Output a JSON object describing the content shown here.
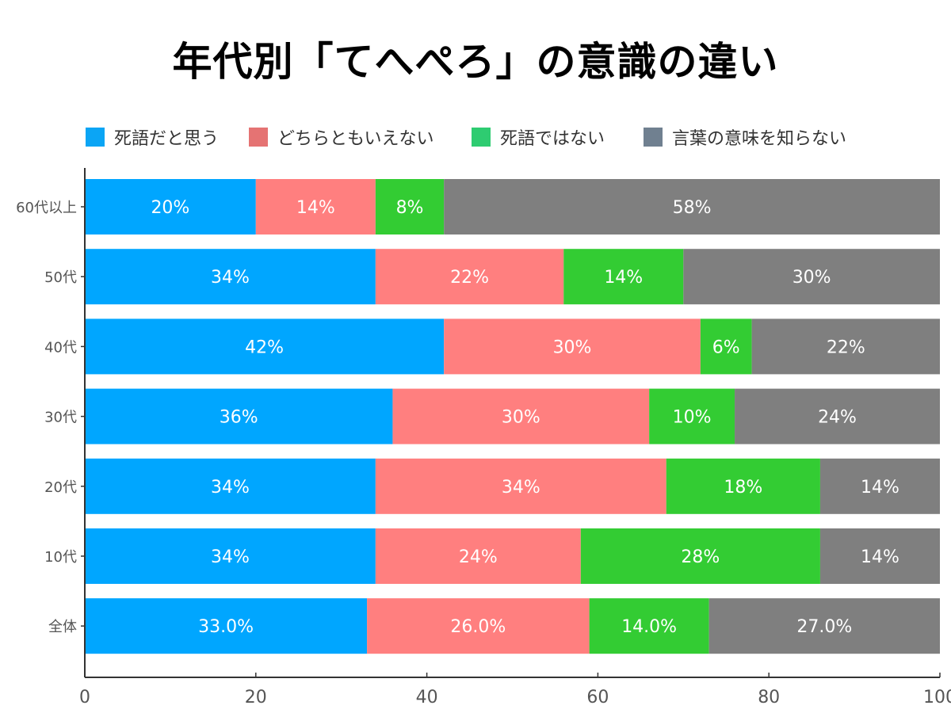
{
  "chart_data": {
    "type": "bar",
    "orientation": "horizontal",
    "stacked": true,
    "title": "年代別「てへぺろ」の意識の違い",
    "xlabel": "",
    "ylabel": "",
    "xlim": [
      0,
      100
    ],
    "xticks": [
      0,
      20,
      40,
      60,
      80,
      100
    ],
    "grid": false,
    "legend_position": "top",
    "categories": [
      "60代以上",
      "50代",
      "40代",
      "30代",
      "20代",
      "10代",
      "全体"
    ],
    "series": [
      {
        "name": "死語だと思う",
        "color": "#00A6FF",
        "legend_color": "#0BA5F5",
        "values": [
          20,
          34,
          42,
          36,
          34,
          34,
          33.0
        ],
        "labels": [
          "20%",
          "34%",
          "42%",
          "36%",
          "34%",
          "34%",
          "33.0%"
        ]
      },
      {
        "name": "どちらともいえない",
        "color": "#FF7F7F",
        "legend_color": "#E57373",
        "values": [
          14,
          22,
          30,
          30,
          34,
          24,
          26.0
        ],
        "labels": [
          "14%",
          "22%",
          "30%",
          "30%",
          "34%",
          "24%",
          "26.0%"
        ]
      },
      {
        "name": "死語ではない",
        "color": "#33CC33",
        "legend_color": "#2ECC71",
        "values": [
          8,
          14,
          6,
          10,
          18,
          28,
          14.0
        ],
        "labels": [
          "8%",
          "14%",
          "6%",
          "10%",
          "18%",
          "28%",
          "14.0%"
        ]
      },
      {
        "name": "言葉の意味を知らない",
        "color": "#7F7F7F",
        "legend_color": "#708090",
        "values": [
          58,
          30,
          22,
          24,
          14,
          14,
          27.0
        ],
        "labels": [
          "58%",
          "30%",
          "22%",
          "24%",
          "14%",
          "14%",
          "27.0%"
        ]
      }
    ]
  }
}
